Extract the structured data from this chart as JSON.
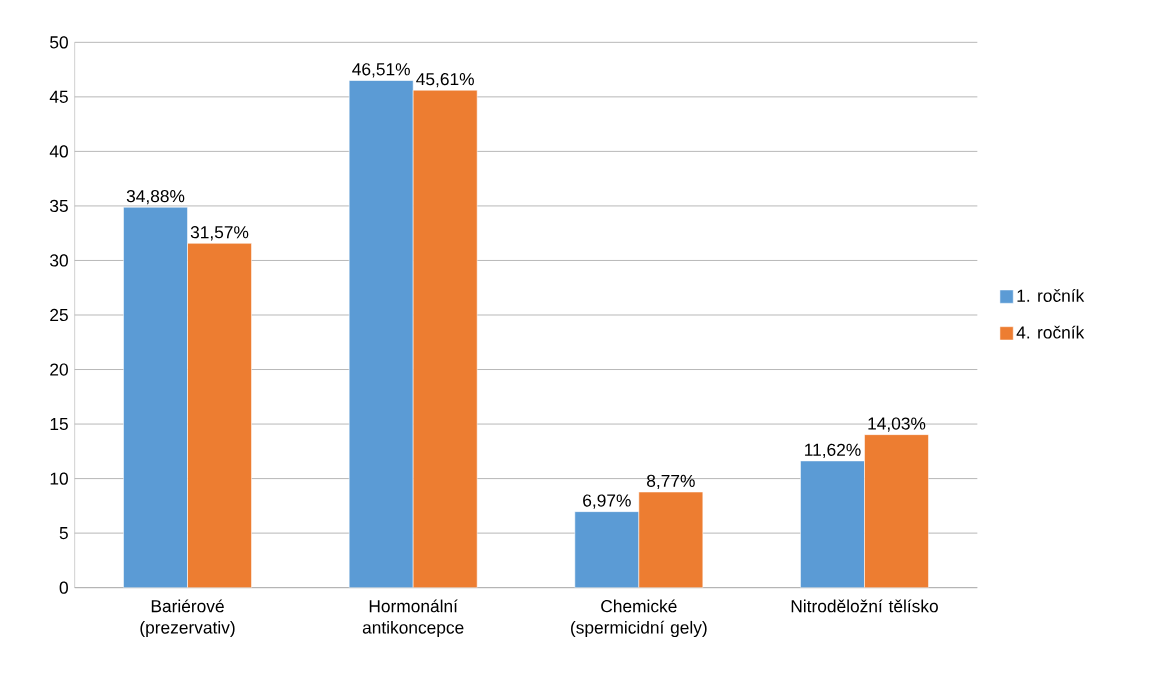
{
  "chart_data": {
    "type": "bar",
    "categories": [
      "Bariérové (prezervativ)",
      "Hormonální antikoncepce",
      "Chemické (spermicidní gely)",
      "Nitroděložní tělísko"
    ],
    "series": [
      {
        "name": "1. ročník",
        "color": "#5b9bd5",
        "values": [
          34.88,
          46.51,
          6.97,
          11.62
        ],
        "value_labels": [
          "34,88%",
          "46,51%",
          "6,97%",
          "11,62%"
        ]
      },
      {
        "name": "4. ročník",
        "color": "#ed7d31",
        "values": [
          31.57,
          45.61,
          8.77,
          14.03
        ],
        "value_labels": [
          "31,57%",
          "45,61%",
          "8,77%",
          "14,03%"
        ]
      }
    ],
    "ylim": [
      0,
      50
    ],
    "yticks": [
      0,
      5,
      10,
      15,
      20,
      25,
      30,
      35,
      40,
      45,
      50
    ],
    "grid": "y",
    "legend": "right"
  }
}
